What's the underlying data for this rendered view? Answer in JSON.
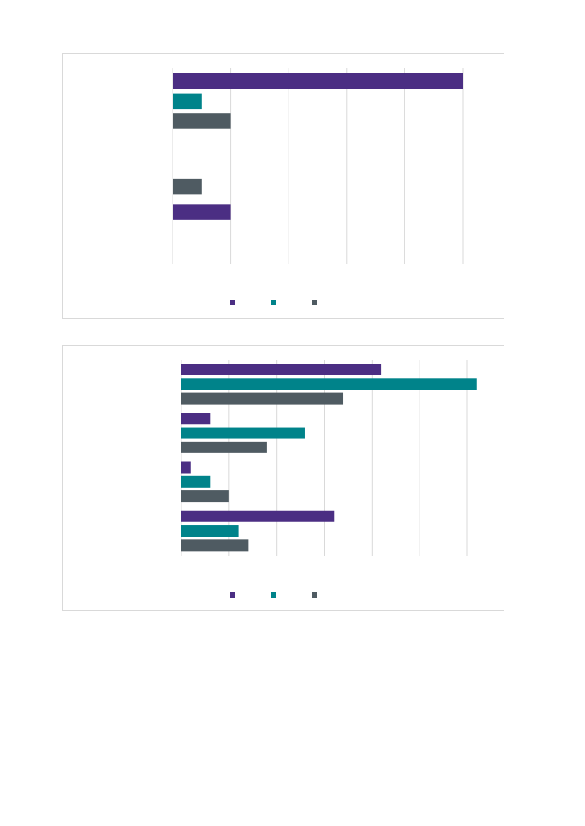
{
  "chart_data": [
    {
      "type": "bar",
      "orientation": "horizontal",
      "title": "",
      "xlabel": "",
      "ylabel": "",
      "categories": [
        "",
        "",
        ""
      ],
      "series": [
        {
          "name": "",
          "color": "#4b2e83",
          "values": [
            10,
            null,
            2
          ]
        },
        {
          "name": "",
          "color": "#00838a",
          "values": [
            1,
            null,
            null
          ]
        },
        {
          "name": "",
          "color": "#4f5b62",
          "values": [
            2,
            1,
            null
          ]
        }
      ],
      "xlim": [
        0,
        10
      ],
      "x_grid_step": 2,
      "grid": "vertical",
      "legend": "bottom"
    },
    {
      "type": "bar",
      "orientation": "horizontal",
      "title": "",
      "xlabel": "",
      "ylabel": "",
      "categories": [
        "",
        "",
        "",
        ""
      ],
      "series": [
        {
          "name": "",
          "color": "#4b2e83",
          "values": [
            4.2,
            0.6,
            0.2,
            3.2
          ]
        },
        {
          "name": "",
          "color": "#00838a",
          "values": [
            6.2,
            2.6,
            0.6,
            1.2
          ]
        },
        {
          "name": "",
          "color": "#4f5b62",
          "values": [
            3.4,
            1.8,
            1.0,
            1.4
          ]
        }
      ],
      "xlim": [
        0,
        6
      ],
      "x_grid_step": 1,
      "grid": "vertical",
      "legend": "bottom"
    }
  ]
}
